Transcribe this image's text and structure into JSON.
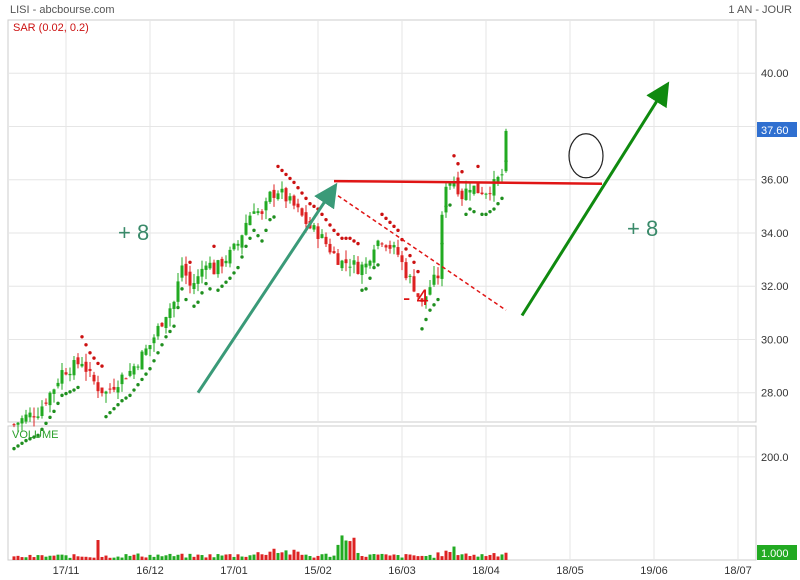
{
  "header": {
    "symbol_source": "LISI - abcbourse.com",
    "period": "1 AN - JOUR"
  },
  "chart_data": {
    "type": "candlestick",
    "indicator_label": "SAR (0.02, 0.2)",
    "price_axis": {
      "min": 26.9,
      "max": 42.0,
      "ticks": [
        28,
        30,
        32,
        34,
        36,
        38,
        40
      ],
      "tick_labels": [
        "28.00",
        "30.00",
        "32.00",
        "34.00",
        "36.00",
        "38.00",
        "40.00"
      ],
      "last_price": 37.6,
      "last_price_label": "37.60"
    },
    "volume_panel": {
      "label": "VOLUME",
      "max": 260,
      "ticks": [
        200
      ],
      "tick_labels": [
        "200.0"
      ],
      "last_value_label": "1.000"
    },
    "x_axis": {
      "labels": [
        "17/11",
        "16/12",
        "17/01",
        "15/02",
        "16/03",
        "18/04",
        "18/05",
        "19/06",
        "18/07"
      ],
      "label_index": [
        13,
        34,
        55,
        76,
        97,
        118,
        139,
        160,
        181
      ],
      "n_slots": 190
    },
    "annotations": [
      {
        "text": "+ 8",
        "color": "#3a8a6a"
      },
      {
        "text": "- 4",
        "color": "#dd1111"
      },
      {
        "text": "+ 8",
        "color": "#3a8a6a"
      }
    ],
    "colors": {
      "up": "#22aa22",
      "down": "#dd2222",
      "sar_up": "#1f8f1f",
      "sar_down": "#cc1111",
      "trend1": "#3a9a78",
      "trend2": "#0f8a0f",
      "resistance": "#e01515"
    },
    "anchors": [
      [
        0,
        26.8
      ],
      [
        3,
        27.1
      ],
      [
        6,
        27.3
      ],
      [
        10,
        28.2
      ],
      [
        12,
        28.8
      ],
      [
        15,
        29.0
      ],
      [
        17,
        29.2
      ],
      [
        19,
        28.6
      ],
      [
        21,
        28.2
      ],
      [
        23,
        28.0
      ],
      [
        25,
        28.3
      ],
      [
        27,
        28.6
      ],
      [
        29,
        28.8
      ],
      [
        31,
        29.2
      ],
      [
        34,
        29.8
      ],
      [
        36,
        30.4
      ],
      [
        38,
        31.0
      ],
      [
        40,
        31.4
      ],
      [
        42,
        32.8
      ],
      [
        44,
        32.0
      ],
      [
        46,
        32.3
      ],
      [
        48,
        33.0
      ],
      [
        50,
        32.6
      ],
      [
        52,
        32.9
      ],
      [
        54,
        33.2
      ],
      [
        56,
        33.6
      ],
      [
        58,
        34.4
      ],
      [
        60,
        35.0
      ],
      [
        62,
        34.6
      ],
      [
        64,
        35.4
      ],
      [
        66,
        35.6
      ],
      [
        68,
        35.3
      ],
      [
        70,
        35.0
      ],
      [
        72,
        34.6
      ],
      [
        74,
        34.2
      ],
      [
        76,
        34.0
      ],
      [
        78,
        33.6
      ],
      [
        80,
        33.2
      ],
      [
        82,
        32.9
      ],
      [
        84,
        32.9
      ],
      [
        86,
        32.7
      ],
      [
        88,
        32.8
      ],
      [
        90,
        33.6
      ],
      [
        92,
        33.8
      ],
      [
        94,
        33.5
      ],
      [
        96,
        33.2
      ],
      [
        98,
        32.5
      ],
      [
        100,
        32.0
      ],
      [
        102,
        31.3
      ],
      [
        104,
        32.0
      ],
      [
        106,
        32.4
      ],
      [
        107,
        34.5
      ],
      [
        108,
        35.9
      ],
      [
        110,
        36.0
      ],
      [
        112,
        35.4
      ],
      [
        114,
        35.8
      ],
      [
        116,
        35.6
      ],
      [
        118,
        35.6
      ],
      [
        120,
        35.8
      ],
      [
        122,
        36.2
      ],
      [
        123,
        37.6
      ]
    ],
    "volume_anchors": [
      [
        0,
        6
      ],
      [
        10,
        8
      ],
      [
        20,
        7
      ],
      [
        21,
        50
      ],
      [
        22,
        7
      ],
      [
        30,
        9
      ],
      [
        45,
        8
      ],
      [
        60,
        10
      ],
      [
        65,
        20
      ],
      [
        75,
        7
      ],
      [
        80,
        11
      ],
      [
        84,
        70
      ],
      [
        86,
        10
      ],
      [
        95,
        8
      ],
      [
        105,
        8
      ],
      [
        110,
        18
      ],
      [
        115,
        8
      ],
      [
        120,
        12
      ],
      [
        123,
        15
      ]
    ]
  }
}
